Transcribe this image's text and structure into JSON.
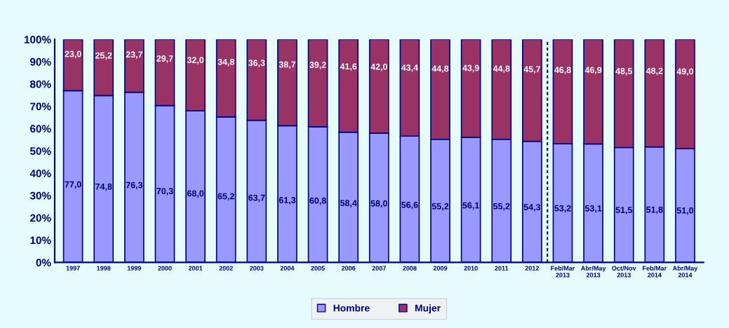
{
  "chart_data": {
    "type": "bar",
    "stacked": true,
    "categories": [
      "1997",
      "1998",
      "1999",
      "2000",
      "2001",
      "2002",
      "2003",
      "2004",
      "2005",
      "2006",
      "2007",
      "2008",
      "2009",
      "2010",
      "2011",
      "2012",
      "Feb/Mar\n2013",
      "Abr/May\n2013",
      "Oct/Nov\n2013",
      "Feb/Mar\n2014",
      "Abr/May\n2014"
    ],
    "series": [
      {
        "name": "Hombre",
        "color": "#9999ff",
        "values": [
          77.0,
          74.8,
          76.3,
          70.3,
          68.0,
          65.2,
          63.7,
          61.3,
          60.8,
          58.4,
          58.0,
          56.6,
          55.2,
          56.1,
          55.2,
          54.3,
          53.2,
          53.1,
          51.5,
          51.8,
          51.0
        ],
        "value_labels": [
          "77,0",
          "74,8",
          "76,3",
          "70,3",
          "68,0",
          "65,2",
          "63,7",
          "61,3",
          "60,8",
          "58,4",
          "58,0",
          "56,6",
          "55,2",
          "56,1",
          "55,2",
          "54,3",
          "53,2",
          "53,1",
          "51,5",
          "51,8",
          "51,0"
        ]
      },
      {
        "name": "Mujer",
        "color": "#993366",
        "values": [
          23.0,
          25.2,
          23.7,
          29.7,
          32.0,
          34.8,
          36.3,
          38.7,
          39.2,
          41.6,
          42.0,
          43.4,
          44.8,
          43.9,
          44.8,
          45.7,
          46.8,
          46.9,
          48.5,
          48.2,
          49.0
        ],
        "value_labels": [
          "23,0",
          "25,2",
          "23,7",
          "29,7",
          "32,0",
          "34,8",
          "36,3",
          "38,7",
          "39,2",
          "41,6",
          "42,0",
          "43,4",
          "44,8",
          "43,9",
          "44,8",
          "45,7",
          "46,8",
          "46,9",
          "48,5",
          "48,2",
          "49,0"
        ]
      }
    ],
    "ylim": [
      0,
      100
    ],
    "yticks": [
      {
        "value": 0,
        "label": "0%"
      },
      {
        "value": 10,
        "label": "10%"
      },
      {
        "value": 20,
        "label": "20%"
      },
      {
        "value": 30,
        "label": "30%"
      },
      {
        "value": 40,
        "label": "40%"
      },
      {
        "value": 50,
        "label": "50%"
      },
      {
        "value": 60,
        "label": "60%"
      },
      {
        "value": 70,
        "label": "70%"
      },
      {
        "value": 80,
        "label": "80%"
      },
      {
        "value": 90,
        "label": "90%"
      },
      {
        "value": 100,
        "label": "100%"
      }
    ],
    "legend": "bottom",
    "grid": false
  }
}
